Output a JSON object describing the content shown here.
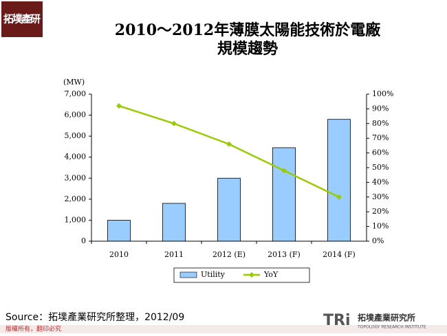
{
  "header": {
    "logo": "拓墣產研"
  },
  "chart_data": {
    "type": "bar",
    "title": "2010～2012年薄膜太陽能技術於電廠規模趨勢",
    "y_label": "(MW)",
    "categories": [
      "2010",
      "2011",
      "2012 (E)",
      "2013 (F)",
      "2014 (F)"
    ],
    "series": [
      {
        "name": "Utility",
        "type": "bar",
        "color": "#99ccff",
        "values": [
          1000,
          1800,
          3000,
          4450,
          5800
        ]
      },
      {
        "name": "YoY",
        "type": "line",
        "axis": "y2",
        "color": "#99cc00",
        "values": [
          92,
          80,
          66,
          48,
          30
        ]
      }
    ],
    "ylim": [
      0,
      7000
    ],
    "yticks": [
      0,
      {
        "value": 1000,
        "label": "1,000"
      },
      {
        "value": 2000,
        "label": "2,000"
      },
      {
        "value": 3000,
        "label": "3,000"
      },
      {
        "value": 4000,
        "label": "4,000"
      },
      {
        "value": 5000,
        "label": "5,000"
      },
      {
        "value": 6000,
        "label": "6,000"
      },
      {
        "value": 7000,
        "label": "7,000"
      }
    ],
    "y2lim": [
      0,
      100
    ],
    "y2ticks": [
      {
        "value": 0,
        "label": "0%"
      },
      {
        "value": 10,
        "label": "10%"
      },
      {
        "value": 20,
        "label": "20%"
      },
      {
        "value": 30,
        "label": "30%"
      },
      {
        "value": 40,
        "label": "40%"
      },
      {
        "value": 50,
        "label": "50%"
      },
      {
        "value": 60,
        "label": "60%"
      },
      {
        "value": 70,
        "label": "70%"
      },
      {
        "value": 80,
        "label": "80%"
      },
      {
        "value": 90,
        "label": "90%"
      },
      {
        "value": 100,
        "label": "100%"
      }
    ],
    "legend": "bottom"
  },
  "footer": {
    "source": "Source：拓墣產業研究所整理，2012/09",
    "copyright": "版權所有，翻印必究",
    "brand": "TRi",
    "brand_name": "拓墣產業研究所",
    "brand_english": "TOPOLOGY RESEARCH INSTITUTE"
  }
}
